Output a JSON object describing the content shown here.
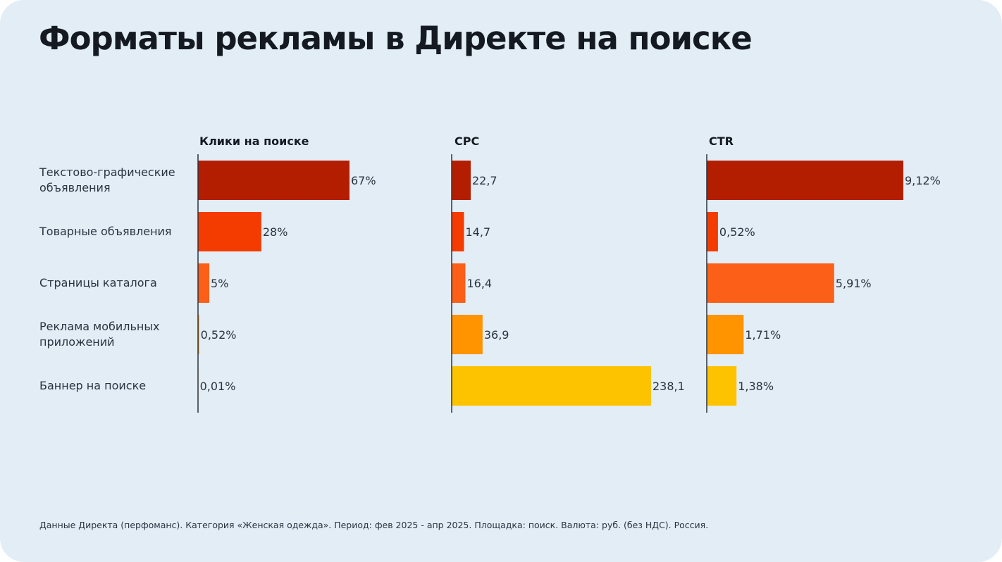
{
  "title": "Форматы рекламы в Директе на поиске",
  "footnote": "Данные Директа (перфоманс). Категория «Женская одежда». Период: фев 2025 - апр 2025. Площадка: поиск. Валюта: руб. (без НДС). Россия.",
  "chart_data": [
    {
      "type": "bar",
      "orientation": "horizontal",
      "title": "Клики на поиске",
      "categories": [
        "Текстово-графические объявления",
        "Товарные объявления",
        "Страницы каталога",
        "Реклама мобильных приложений",
        "Баннер на поиске"
      ],
      "values": [
        67,
        28,
        5,
        0.52,
        0.01
      ],
      "labels": [
        "67%",
        "28%",
        "5%",
        "0,52%",
        "0,01%"
      ],
      "unit": "%"
    },
    {
      "type": "bar",
      "orientation": "horizontal",
      "title": "CPC",
      "categories": [
        "Текстово-графические объявления",
        "Товарные объявления",
        "Страницы каталога",
        "Реклама мобильных приложений",
        "Баннер на поиске"
      ],
      "values": [
        22.7,
        14.7,
        16.4,
        36.9,
        238.1
      ],
      "labels": [
        "22,7",
        "14,7",
        "16,4",
        "36,9",
        "238,1"
      ]
    },
    {
      "type": "bar",
      "orientation": "horizontal",
      "title": "CTR",
      "categories": [
        "Текстово-графические объявления",
        "Товарные объявления",
        "Страницы каталога",
        "Реклама мобильных приложений",
        "Баннер на поиске"
      ],
      "values": [
        9.12,
        0.52,
        5.91,
        1.71,
        1.38
      ],
      "labels": [
        "9,12%",
        "0,52%",
        "5,91%",
        "1,71%",
        "1,38%"
      ],
      "unit": "%"
    }
  ],
  "colors": [
    "#B41E00",
    "#F43B00",
    "#FC5F17",
    "#FF9300",
    "#FDC300"
  ],
  "category_labels": [
    "Текстово-графические объявления",
    "Товарные объявления",
    "Страницы каталога",
    "Реклама мобильных приложений",
    "Баннер на поиске"
  ]
}
